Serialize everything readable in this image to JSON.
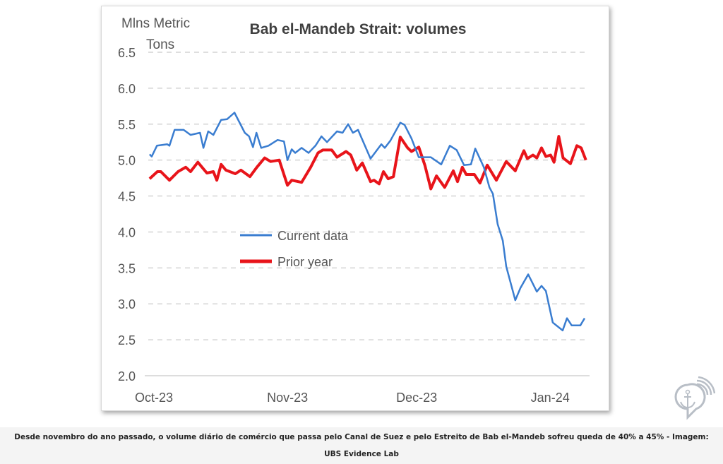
{
  "chart_data": {
    "type": "line",
    "title": "Bab el-Mandeb Strait: volumes",
    "ylabel": "Mlns Metric Tons",
    "xlabel": "",
    "ylim": [
      2.0,
      6.5
    ],
    "yticks": [
      "2.0",
      "2.5",
      "3.0",
      "3.5",
      "4.0",
      "4.5",
      "5.0",
      "5.5",
      "6.0",
      "6.5"
    ],
    "x_unit": "days since 1 Oct 2023",
    "xlim": [
      -1,
      101
    ],
    "xticks": [
      {
        "label": "Oct-23",
        "x": 0
      },
      {
        "label": "Nov-23",
        "x": 31
      },
      {
        "label": "Dec-23",
        "x": 61
      },
      {
        "label": "Jan-24",
        "x": 92
      }
    ],
    "grid": "horizontal dashed",
    "legend_position": "center-left",
    "series": [
      {
        "name": "Current data",
        "color": "#3a7dd0",
        "points": [
          [
            -1,
            5.08
          ],
          [
            -0.5,
            5.05
          ],
          [
            0.7,
            5.2
          ],
          [
            3.1,
            5.22
          ],
          [
            3.6,
            5.2
          ],
          [
            4.8,
            5.42
          ],
          [
            6.9,
            5.42
          ],
          [
            8.5,
            5.35
          ],
          [
            10.7,
            5.38
          ],
          [
            11.5,
            5.17
          ],
          [
            12.6,
            5.4
          ],
          [
            13.8,
            5.35
          ],
          [
            15.6,
            5.56
          ],
          [
            17,
            5.57
          ],
          [
            18.7,
            5.66
          ],
          [
            21.1,
            5.38
          ],
          [
            22.1,
            5.33
          ],
          [
            23,
            5.18
          ],
          [
            23.8,
            5.38
          ],
          [
            24.9,
            5.17
          ],
          [
            26.6,
            5.2
          ],
          [
            28.7,
            5.28
          ],
          [
            30.2,
            5.26
          ],
          [
            31,
            5.0
          ],
          [
            32,
            5.15
          ],
          [
            32.8,
            5.1
          ],
          [
            34.3,
            5.17
          ],
          [
            35.9,
            5.1
          ],
          [
            37.5,
            5.2
          ],
          [
            38.9,
            5.33
          ],
          [
            40.2,
            5.25
          ],
          [
            42.5,
            5.4
          ],
          [
            43.8,
            5.38
          ],
          [
            45.1,
            5.5
          ],
          [
            46.2,
            5.38
          ],
          [
            47.4,
            5.42
          ],
          [
            50.3,
            5.02
          ],
          [
            52.8,
            5.22
          ],
          [
            53.6,
            5.17
          ],
          [
            54.9,
            5.27
          ],
          [
            57.2,
            5.52
          ],
          [
            58.2,
            5.49
          ],
          [
            59.8,
            5.3
          ],
          [
            61.5,
            5.04
          ],
          [
            64.3,
            5.04
          ],
          [
            66.7,
            4.94
          ],
          [
            68.7,
            5.2
          ],
          [
            70.3,
            5.14
          ],
          [
            72,
            4.93
          ],
          [
            73.6,
            4.94
          ],
          [
            74.6,
            5.16
          ],
          [
            76.6,
            4.9
          ],
          [
            77.9,
            4.62
          ],
          [
            78.7,
            4.53
          ],
          [
            79.8,
            4.11
          ],
          [
            81,
            3.88
          ],
          [
            81.8,
            3.52
          ],
          [
            83.9,
            3.05
          ],
          [
            85.1,
            3.22
          ],
          [
            86.9,
            3.41
          ],
          [
            88.9,
            3.17
          ],
          [
            90,
            3.25
          ],
          [
            91,
            3.18
          ],
          [
            92.6,
            2.74
          ],
          [
            94.9,
            2.63
          ],
          [
            95.9,
            2.8
          ],
          [
            97,
            2.7
          ],
          [
            99,
            2.7
          ],
          [
            100,
            2.8
          ]
        ]
      },
      {
        "name": "Prior year",
        "color": "#e8141a",
        "points": [
          [
            -1,
            4.74
          ],
          [
            0.8,
            4.84
          ],
          [
            1.6,
            4.84
          ],
          [
            3.6,
            4.72
          ],
          [
            5.6,
            4.84
          ],
          [
            7.4,
            4.9
          ],
          [
            8.5,
            4.84
          ],
          [
            10.2,
            4.97
          ],
          [
            12.3,
            4.82
          ],
          [
            13.8,
            4.84
          ],
          [
            14.6,
            4.72
          ],
          [
            15.6,
            4.94
          ],
          [
            16.7,
            4.86
          ],
          [
            18.9,
            4.81
          ],
          [
            20.2,
            4.86
          ],
          [
            22.3,
            4.77
          ],
          [
            23.9,
            4.9
          ],
          [
            25.7,
            5.03
          ],
          [
            27.1,
            4.98
          ],
          [
            29.1,
            5.0
          ],
          [
            31,
            4.65
          ],
          [
            32,
            4.72
          ],
          [
            34.3,
            4.69
          ],
          [
            36.4,
            4.9
          ],
          [
            38.1,
            5.1
          ],
          [
            39.2,
            5.14
          ],
          [
            41.3,
            5.14
          ],
          [
            42.5,
            5.04
          ],
          [
            44.6,
            5.12
          ],
          [
            45.7,
            5.07
          ],
          [
            47.1,
            4.86
          ],
          [
            48.4,
            4.96
          ],
          [
            50.3,
            4.7
          ],
          [
            51.1,
            4.72
          ],
          [
            52.3,
            4.67
          ],
          [
            53.3,
            4.84
          ],
          [
            54.4,
            4.74
          ],
          [
            55.6,
            4.77
          ],
          [
            57.2,
            5.32
          ],
          [
            58.9,
            5.17
          ],
          [
            59.8,
            5.12
          ],
          [
            61.5,
            5.18
          ],
          [
            62.9,
            4.93
          ],
          [
            64.3,
            4.6
          ],
          [
            65.6,
            4.78
          ],
          [
            67.5,
            4.62
          ],
          [
            69.5,
            4.85
          ],
          [
            70.5,
            4.7
          ],
          [
            71.6,
            4.9
          ],
          [
            72.5,
            4.8
          ],
          [
            74.4,
            4.8
          ],
          [
            75.7,
            4.68
          ],
          [
            77.4,
            4.93
          ],
          [
            79.5,
            4.72
          ],
          [
            81.8,
            4.98
          ],
          [
            83.9,
            4.85
          ],
          [
            85.9,
            5.13
          ],
          [
            86.7,
            5.02
          ],
          [
            88,
            5.07
          ],
          [
            88.9,
            5.03
          ],
          [
            90,
            5.17
          ],
          [
            91,
            5.05
          ],
          [
            92.1,
            5.07
          ],
          [
            92.9,
            4.97
          ],
          [
            94,
            5.33
          ],
          [
            95,
            5.03
          ],
          [
            96.7,
            4.95
          ],
          [
            98.2,
            5.2
          ],
          [
            99.2,
            5.17
          ],
          [
            100.3,
            5.0
          ]
        ]
      }
    ]
  },
  "caption": "Desde novembro do ano passado, o volume diário de comércio que passa pelo Canal de Suez e pelo Estreito de Bab el-Mandeb sofreu queda de 40% a 45% - Imagem: UBS Evidence Lab",
  "ylabel_lines": [
    "Mlns Metric",
    "Tons"
  ]
}
